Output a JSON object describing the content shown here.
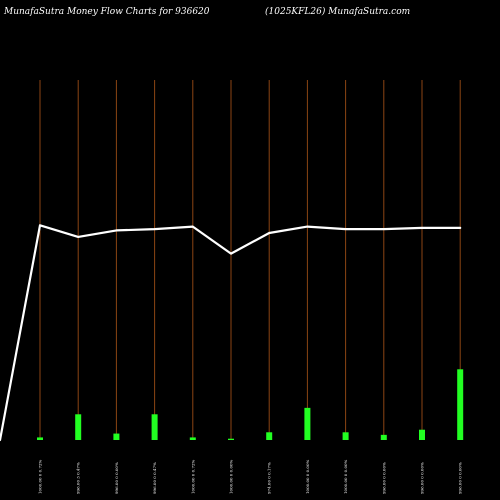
{
  "header": {
    "left_title": "MunafaSutra  Money Flow  Charts for 936620",
    "right_title": "(1025KFL26) MunafaSutra.com"
  },
  "colors": {
    "background": "#000000",
    "grid_line": "#8B4513",
    "bar": "#22ff22",
    "line": "#ffffff",
    "text": "#ffffff"
  },
  "chart_data": {
    "type": "bar",
    "categories": [
      "1000.00  0 0.72%",
      "996.00  3 0.47%",
      "996.00  0 0.00%",
      "996.00  0 0.47%",
      "1000.00  0 0.72%",
      "1000.00  0 0.00%",
      "974.00  0 0.17%",
      "1000.00  0 0.00%",
      "1000.00  0 0.00%",
      "996.00  0 0.00%",
      "996.00  0 0.00%",
      "996.00  0 0.00%"
    ],
    "bar_values": [
      1,
      10,
      2.5,
      10,
      1,
      0.5,
      3,
      12.5,
      3,
      2,
      4,
      27.5
    ],
    "line_values": [
      83.5,
      79,
      81.5,
      82,
      83,
      72.5,
      80.5,
      83,
      82,
      82,
      82.5,
      82.5
    ],
    "line_start_value": 0,
    "ylim": [
      0,
      140
    ],
    "grid": "vertical lines at each category",
    "legend": "none"
  }
}
